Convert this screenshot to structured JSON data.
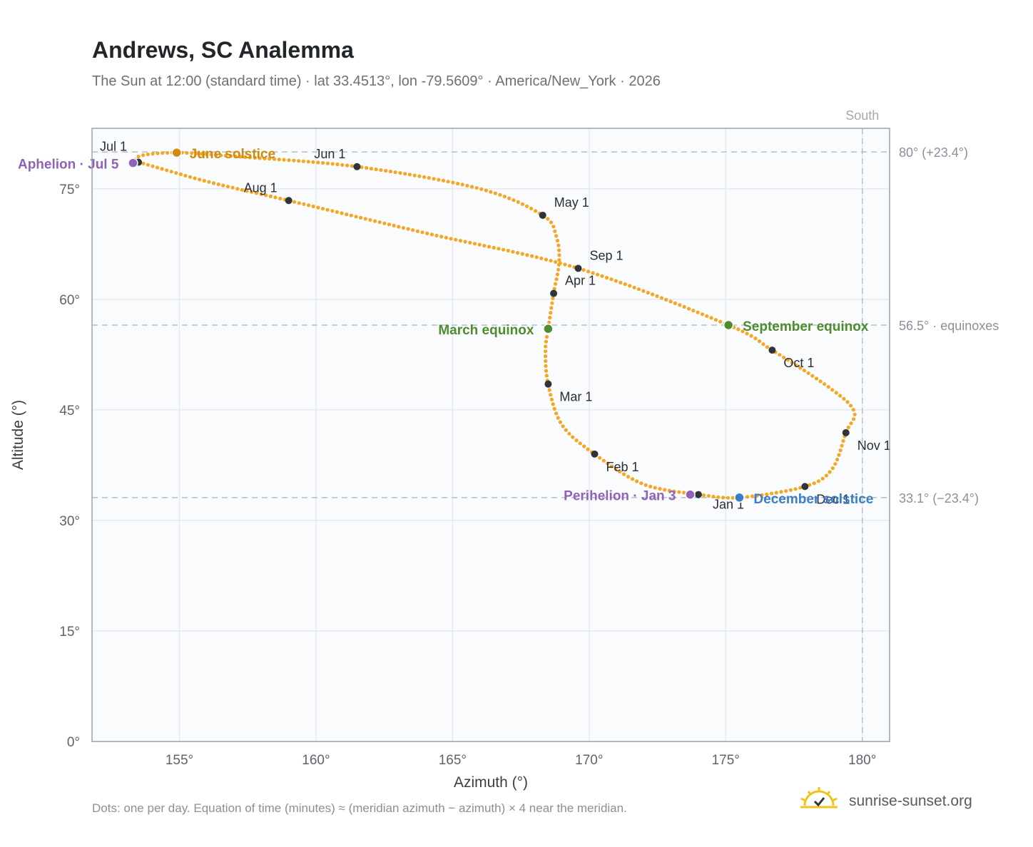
{
  "title": "Andrews, SC Analemma",
  "subtitle": "The Sun at 12:00 (standard time) · lat 33.4513°, lon -79.5609° · America/New_York · 2026",
  "footnote": "Dots: one per day. Equation of time (minutes) ≈ (meridian azimuth − azimuth) × 4 near the meridian.",
  "brand": {
    "text": "sunrise-sunset.org",
    "icon": "sun-logo-icon"
  },
  "colors": {
    "curve": "#f5a623",
    "month_marker": "#2f3438",
    "june_solstice": "#d18a0e",
    "december_solstice": "#3b7ec8",
    "equinox": "#4e8c2f",
    "apsis": "#8e63b8",
    "plot_bg": "#f9fbfd",
    "grid": "#e3e8ed",
    "reference_line": "#b4bec6"
  },
  "chart_data": {
    "type": "scatter",
    "xlabel": "Azimuth (°)",
    "ylabel": "Altitude (°)",
    "xlim": [
      151.8,
      181
    ],
    "ylim": [
      0,
      83.2
    ],
    "x_ticks": [
      {
        "value": 155,
        "label": "155°"
      },
      {
        "value": 160,
        "label": "160°"
      },
      {
        "value": 165,
        "label": "165°"
      },
      {
        "value": 170,
        "label": "170°"
      },
      {
        "value": 175,
        "label": "175°"
      },
      {
        "value": 180,
        "label": "180°"
      }
    ],
    "y_ticks": [
      {
        "value": 0,
        "label": "0°"
      },
      {
        "value": 15,
        "label": "15°"
      },
      {
        "value": 30,
        "label": "30°"
      },
      {
        "value": 45,
        "label": "45°"
      },
      {
        "value": 60,
        "label": "60°"
      },
      {
        "value": 75,
        "label": "75°"
      }
    ],
    "grid": true,
    "south_line": {
      "x": 180,
      "label": "South"
    },
    "reference_lines": [
      {
        "y": 80,
        "label": "80° (+23.4°)"
      },
      {
        "y": 56.5,
        "label": "56.5° · equinoxes"
      },
      {
        "y": 33.1,
        "label": "33.1° (−23.4°)"
      }
    ],
    "month_markers": [
      {
        "label": "Jan 1",
        "az": 174.0,
        "alt": 33.5
      },
      {
        "label": "Feb 1",
        "az": 170.2,
        "alt": 39.0
      },
      {
        "label": "Mar 1",
        "az": 168.5,
        "alt": 48.5
      },
      {
        "label": "Apr 1",
        "az": 168.7,
        "alt": 60.8
      },
      {
        "label": "May 1",
        "az": 168.3,
        "alt": 71.4
      },
      {
        "label": "Jun 1",
        "az": 161.5,
        "alt": 78.0
      },
      {
        "label": "Jul 1",
        "az": 153.5,
        "alt": 78.6
      },
      {
        "label": "Aug 1",
        "az": 159.0,
        "alt": 73.4
      },
      {
        "label": "Sep 1",
        "az": 169.6,
        "alt": 64.2
      },
      {
        "label": "Oct 1",
        "az": 176.7,
        "alt": 53.1
      },
      {
        "label": "Nov 1",
        "az": 179.4,
        "alt": 41.9
      },
      {
        "label": "Dec 1",
        "az": 177.9,
        "alt": 34.6
      }
    ],
    "special_points": [
      {
        "label": "June solstice",
        "az": 154.9,
        "alt": 79.9,
        "kind": "june_solstice"
      },
      {
        "label": "December solstice",
        "az": 175.5,
        "alt": 33.1,
        "kind": "december_solstice"
      },
      {
        "label": "March equinox",
        "az": 168.5,
        "alt": 56.0,
        "kind": "equinox"
      },
      {
        "label": "September equinox",
        "az": 175.1,
        "alt": 56.5,
        "kind": "equinox"
      },
      {
        "label": "Aphelion · Jul 5",
        "az": 153.3,
        "alt": 78.5,
        "kind": "apsis"
      },
      {
        "label": "Perihelion · Jan 3",
        "az": 173.7,
        "alt": 33.5,
        "kind": "apsis"
      }
    ],
    "curve_path": [
      [
        174.0,
        33.5
      ],
      [
        172.0,
        34.9
      ],
      [
        170.2,
        39.0
      ],
      [
        169.0,
        43.0
      ],
      [
        168.5,
        48.5
      ],
      [
        168.4,
        53.0
      ],
      [
        168.5,
        56.0
      ],
      [
        168.7,
        60.8
      ],
      [
        168.9,
        65.0
      ],
      [
        168.8,
        68.5
      ],
      [
        168.3,
        71.4
      ],
      [
        166.0,
        75.0
      ],
      [
        161.5,
        78.0
      ],
      [
        157.0,
        79.4
      ],
      [
        154.9,
        79.9
      ],
      [
        153.6,
        79.5
      ],
      [
        153.3,
        78.5
      ],
      [
        153.5,
        78.6
      ],
      [
        156.0,
        76.0
      ],
      [
        159.0,
        73.4
      ],
      [
        164.0,
        69.0
      ],
      [
        169.6,
        64.2
      ],
      [
        175.1,
        56.5
      ],
      [
        176.7,
        53.1
      ],
      [
        178.8,
        48.0
      ],
      [
        179.7,
        44.8
      ],
      [
        179.4,
        41.9
      ],
      [
        178.9,
        37.0
      ],
      [
        177.9,
        34.6
      ],
      [
        175.5,
        33.1
      ],
      [
        174.0,
        33.5
      ]
    ]
  }
}
